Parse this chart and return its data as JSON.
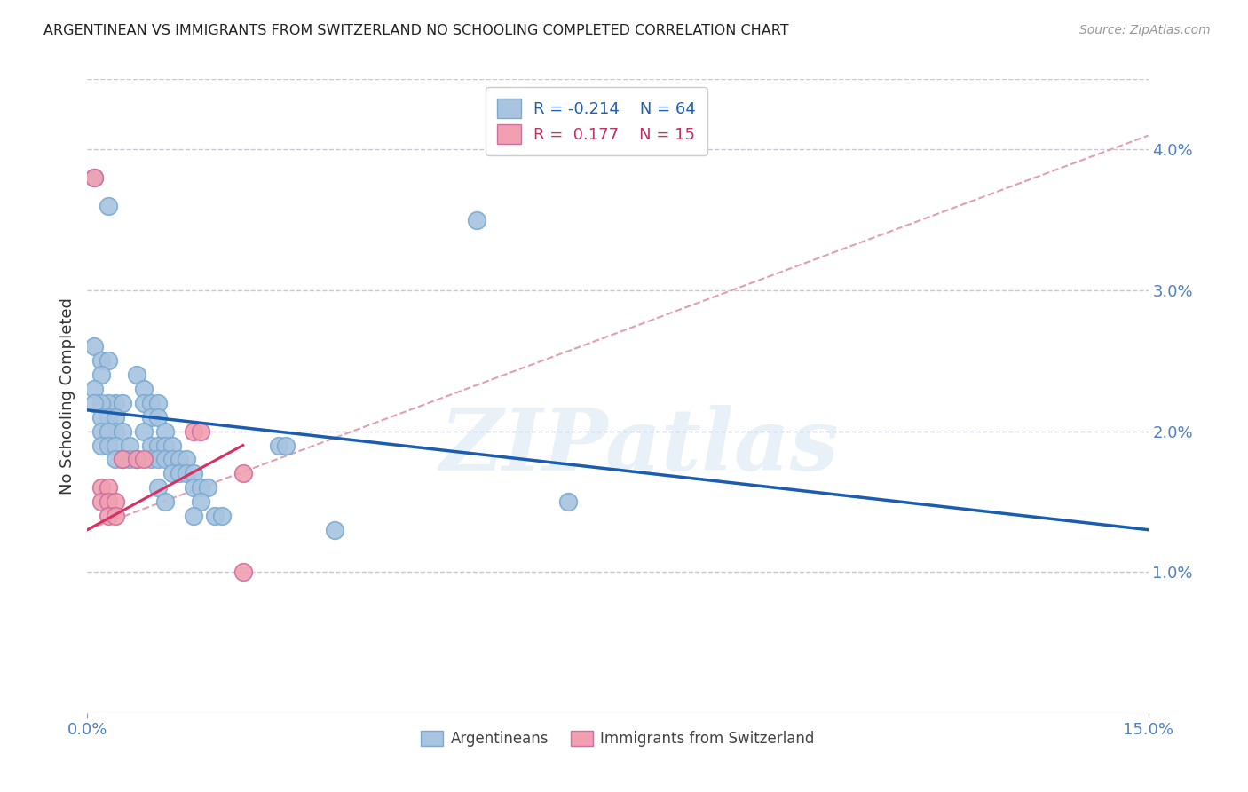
{
  "title": "ARGENTINEAN VS IMMIGRANTS FROM SWITZERLAND NO SCHOOLING COMPLETED CORRELATION CHART",
  "source": "Source: ZipAtlas.com",
  "ylabel": "No Schooling Completed",
  "xmin": 0.0,
  "xmax": 0.15,
  "ymin": 0.0,
  "ymax": 0.045,
  "yticks": [
    0.01,
    0.02,
    0.03,
    0.04
  ],
  "ytick_labels": [
    "1.0%",
    "2.0%",
    "3.0%",
    "4.0%"
  ],
  "xtick_positions": [
    0.0,
    0.15
  ],
  "xtick_labels": [
    "0.0%",
    "15.0%"
  ],
  "blue_R": "-0.214",
  "blue_N": "64",
  "pink_R": "0.177",
  "pink_N": "15",
  "blue_color": "#a8c4e0",
  "pink_color": "#f0a0b0",
  "blue_line_color": "#1a5cb0",
  "pink_line_color": "#d83060",
  "pink_dash_color": "#e0a0b0",
  "watermark": "ZIPatlas",
  "blue_points": [
    [
      0.001,
      0.038
    ],
    [
      0.003,
      0.036
    ],
    [
      0.001,
      0.026
    ],
    [
      0.002,
      0.025
    ],
    [
      0.003,
      0.025
    ],
    [
      0.002,
      0.024
    ],
    [
      0.001,
      0.023
    ],
    [
      0.004,
      0.022
    ],
    [
      0.003,
      0.022
    ],
    [
      0.002,
      0.022
    ],
    [
      0.005,
      0.022
    ],
    [
      0.001,
      0.022
    ],
    [
      0.003,
      0.021
    ],
    [
      0.002,
      0.021
    ],
    [
      0.004,
      0.021
    ],
    [
      0.004,
      0.02
    ],
    [
      0.002,
      0.02
    ],
    [
      0.003,
      0.02
    ],
    [
      0.005,
      0.02
    ],
    [
      0.002,
      0.019
    ],
    [
      0.003,
      0.019
    ],
    [
      0.004,
      0.019
    ],
    [
      0.006,
      0.019
    ],
    [
      0.004,
      0.018
    ],
    [
      0.006,
      0.018
    ],
    [
      0.005,
      0.018
    ],
    [
      0.007,
      0.018
    ],
    [
      0.007,
      0.024
    ],
    [
      0.008,
      0.023
    ],
    [
      0.008,
      0.022
    ],
    [
      0.009,
      0.022
    ],
    [
      0.01,
      0.022
    ],
    [
      0.009,
      0.021
    ],
    [
      0.01,
      0.021
    ],
    [
      0.008,
      0.02
    ],
    [
      0.011,
      0.02
    ],
    [
      0.009,
      0.019
    ],
    [
      0.01,
      0.019
    ],
    [
      0.011,
      0.019
    ],
    [
      0.012,
      0.019
    ],
    [
      0.009,
      0.018
    ],
    [
      0.01,
      0.018
    ],
    [
      0.011,
      0.018
    ],
    [
      0.012,
      0.018
    ],
    [
      0.013,
      0.018
    ],
    [
      0.014,
      0.018
    ],
    [
      0.012,
      0.017
    ],
    [
      0.013,
      0.017
    ],
    [
      0.014,
      0.017
    ],
    [
      0.015,
      0.017
    ],
    [
      0.01,
      0.016
    ],
    [
      0.015,
      0.016
    ],
    [
      0.016,
      0.016
    ],
    [
      0.017,
      0.016
    ],
    [
      0.011,
      0.015
    ],
    [
      0.016,
      0.015
    ],
    [
      0.015,
      0.014
    ],
    [
      0.018,
      0.014
    ],
    [
      0.019,
      0.014
    ],
    [
      0.027,
      0.019
    ],
    [
      0.028,
      0.019
    ],
    [
      0.035,
      0.013
    ],
    [
      0.055,
      0.035
    ],
    [
      0.068,
      0.015
    ]
  ],
  "pink_points": [
    [
      0.001,
      0.038
    ],
    [
      0.002,
      0.016
    ],
    [
      0.003,
      0.016
    ],
    [
      0.002,
      0.015
    ],
    [
      0.003,
      0.015
    ],
    [
      0.004,
      0.015
    ],
    [
      0.003,
      0.014
    ],
    [
      0.004,
      0.014
    ],
    [
      0.005,
      0.018
    ],
    [
      0.007,
      0.018
    ],
    [
      0.008,
      0.018
    ],
    [
      0.015,
      0.02
    ],
    [
      0.016,
      0.02
    ],
    [
      0.022,
      0.017
    ],
    [
      0.022,
      0.01
    ]
  ],
  "blue_trend_x": [
    0.0,
    0.15
  ],
  "blue_trend_y": [
    0.0215,
    0.013
  ],
  "pink_trend_x": [
    0.0,
    0.022
  ],
  "pink_trend_y": [
    0.013,
    0.019
  ],
  "pink_dash_trend_x": [
    0.0,
    0.15
  ],
  "pink_dash_trend_y": [
    0.013,
    0.041
  ]
}
